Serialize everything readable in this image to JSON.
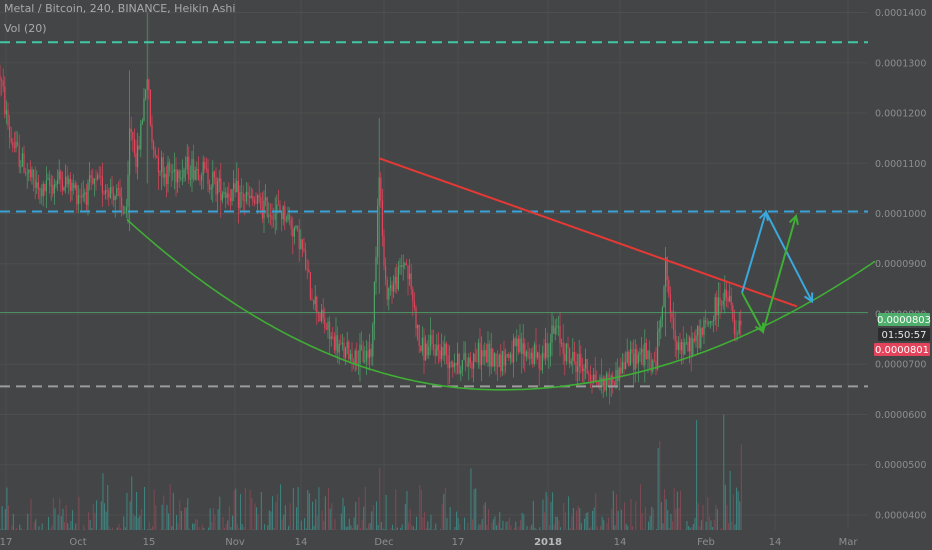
{
  "header": {
    "symbol_line": "Metal / Bitcoin, 240, BINANCE, Heikin Ashi",
    "volume_line": "Vol (20)"
  },
  "price_badges": {
    "last_price": "0.0000803",
    "countdown": "01:50:57",
    "bid_price": "0.0000801"
  },
  "colors": {
    "background": "#444546",
    "grid": "#4d4e4f",
    "up": "#4ea36b",
    "down": "#e2445b",
    "trend_line": "#e53935",
    "cup_curve": "#3fae35",
    "resistance_teal": "#3ec9a5",
    "resistance_blue": "#39a2d8",
    "support_gray": "#9c9c9c",
    "arrow_blue": "#3aa7dd",
    "arrow_green": "#3fae35",
    "badge_green": "#4fae6b",
    "badge_red": "#e2445b",
    "badge_dark": "#2b2c2d"
  },
  "chart_data": {
    "type": "candlestick",
    "ylim": [
      3.7e-05,
      0.0001425
    ],
    "y_ticks": [
      "0.0000400",
      "0.0000500",
      "0.0000600",
      "0.0000700",
      "0.0000800",
      "0.0000900",
      "0.0001000",
      "0.0001100",
      "0.0001200",
      "0.0001300",
      "0.0001400"
    ],
    "x_ticks": [
      {
        "label": "17",
        "bold": false
      },
      {
        "label": "Oct",
        "bold": false
      },
      {
        "label": "15",
        "bold": false
      },
      {
        "label": "Nov",
        "bold": false
      },
      {
        "label": "14",
        "bold": false
      },
      {
        "label": "Dec",
        "bold": false
      },
      {
        "label": "17",
        "bold": false
      },
      {
        "label": "2018",
        "bold": true
      },
      {
        "label": "14",
        "bold": false
      },
      {
        "label": "Feb",
        "bold": false
      },
      {
        "label": "14",
        "bold": false
      },
      {
        "label": "Mar",
        "bold": false
      }
    ],
    "price_path": [
      [
        0,
        0.0001275
      ],
      [
        10,
        0.000115
      ],
      [
        25,
        0.000109
      ],
      [
        40,
        0.000104
      ],
      [
        60,
        0.000107
      ],
      [
        80,
        0.000104
      ],
      [
        100,
        0.000106
      ],
      [
        115,
        0.000104
      ],
      [
        127,
        9.95e-05
      ],
      [
        130,
        0.0001185
      ],
      [
        137,
        0.00011
      ],
      [
        147,
        0.000128
      ],
      [
        152,
        0.0001135
      ],
      [
        165,
        0.000108
      ],
      [
        185,
        0.000109
      ],
      [
        200,
        0.000109
      ],
      [
        215,
        0.000106
      ],
      [
        230,
        0.000104
      ],
      [
        245,
        0.000103
      ],
      [
        265,
        0.000101
      ],
      [
        285,
        0.0001
      ],
      [
        300,
        9.5e-05
      ],
      [
        310,
        8.5e-05
      ],
      [
        320,
        8e-05
      ],
      [
        330,
        7.55e-05
      ],
      [
        340,
        7.3e-05
      ],
      [
        360,
        7.1e-05
      ],
      [
        372,
        7.3e-05
      ],
      [
        379,
        0.0001095
      ],
      [
        385,
        8.5e-05
      ],
      [
        395,
        8.6e-05
      ],
      [
        405,
        9.1e-05
      ],
      [
        412,
        8.4e-05
      ],
      [
        420,
        7.3e-05
      ],
      [
        440,
        7.3e-05
      ],
      [
        460,
        7e-05
      ],
      [
        480,
        7.2e-05
      ],
      [
        500,
        7.1e-05
      ],
      [
        520,
        7.3e-05
      ],
      [
        540,
        7.1e-05
      ],
      [
        556,
        7.7e-05
      ],
      [
        570,
        7.1e-05
      ],
      [
        585,
        6.95e-05
      ],
      [
        598,
        6.65e-05
      ],
      [
        612,
        6.65e-05
      ],
      [
        625,
        7.05e-05
      ],
      [
        640,
        7.25e-05
      ],
      [
        655,
        6.95e-05
      ],
      [
        666,
        9e-05
      ],
      [
        672,
        7.7e-05
      ],
      [
        685,
        7.25e-05
      ],
      [
        700,
        7.6e-05
      ],
      [
        712,
        7.9e-05
      ],
      [
        720,
        8.3e-05
      ],
      [
        730,
        8.25e-05
      ],
      [
        736,
        7.45e-05
      ],
      [
        742,
        7.9e-05
      ]
    ],
    "spikes": [
      {
        "x": 130,
        "high": 0.0001285,
        "low": 9.65e-05
      },
      {
        "x": 147,
        "high": 0.00014,
        "low": 0.000106
      },
      {
        "x": 379,
        "high": 0.000119,
        "low": 8.4e-05
      },
      {
        "x": 666,
        "high": 9.12e-05,
        "low": 7.55e-05
      },
      {
        "x": 335,
        "high": 7.4e-05,
        "low": 6.43e-05
      }
    ],
    "annotations": {
      "horizontal_lines": [
        {
          "price": 0.0001341,
          "style": "dashed",
          "color_key": "resistance_teal"
        },
        {
          "price": 0.0001004,
          "style": "dashed",
          "color_key": "resistance_blue"
        },
        {
          "price": 8.03e-05,
          "style": "solid-thin",
          "color_key": "badge_green"
        },
        {
          "price": 6.56e-05,
          "style": "dashed",
          "color_key": "support_gray"
        }
      ],
      "trend_line": {
        "from": [
          379,
          0.000111
        ],
        "to": [
          797,
          8.15e-05
        ]
      },
      "cup_curve": {
        "from": [
          127,
          9.88e-05
        ],
        "bottom": [
          500,
          6.49e-05
        ],
        "to": [
          875,
          9.05e-05
        ]
      },
      "arrows": [
        {
          "color_key": "arrow_blue",
          "points": [
            [
              742,
              8.42e-05
            ],
            [
              766,
              0.0001003
            ],
            [
              812,
              8.25e-05
            ]
          ]
        },
        {
          "color_key": "arrow_green",
          "points": [
            [
              742,
              8.42e-05
            ],
            [
              763,
              7.65e-05
            ],
            [
              796,
              9.95e-05
            ]
          ]
        }
      ]
    },
    "volume": {
      "max_height": 0.24,
      "x_start": 0,
      "x_end": 742
    }
  }
}
